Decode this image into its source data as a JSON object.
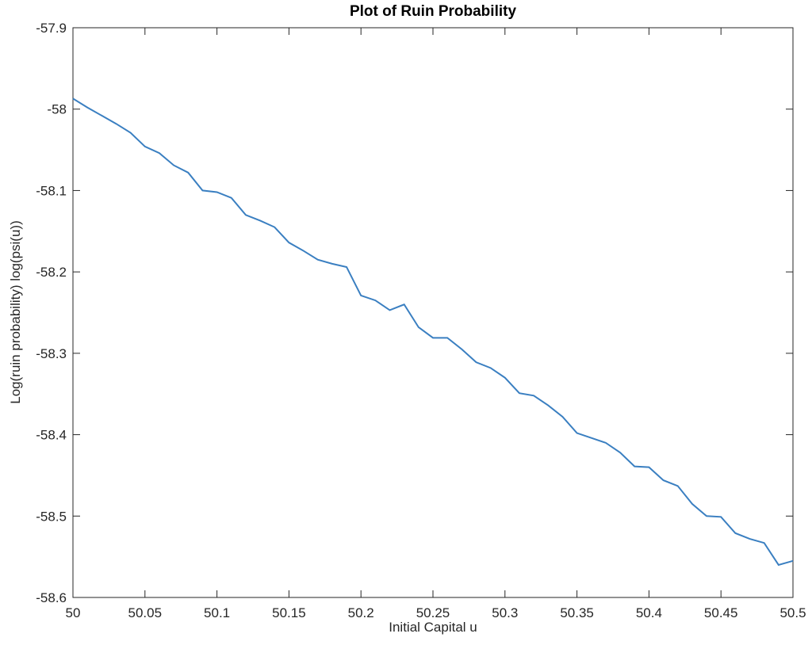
{
  "chart_data": {
    "type": "line",
    "title": "Plot of Ruin Probability",
    "x_label": "Initial Capital u",
    "y_label": "Log(ruin probability) log(psi(u))",
    "x": [
      50,
      50.01,
      50.02,
      50.03,
      50.04,
      50.05,
      50.06,
      50.07,
      50.08,
      50.09,
      50.1,
      50.11,
      50.12,
      50.13,
      50.14,
      50.15,
      50.16,
      50.17,
      50.18,
      50.19,
      50.2,
      50.21,
      50.22,
      50.23,
      50.24,
      50.25,
      50.26,
      50.27,
      50.28,
      50.29,
      50.3,
      50.31,
      50.32,
      50.33,
      50.34,
      50.35,
      50.36,
      50.37,
      50.38,
      50.39,
      50.4,
      50.41,
      50.42,
      50.43,
      50.44,
      50.45,
      50.46,
      50.47,
      50.48,
      50.49,
      50.5
    ],
    "values": [
      -57.987,
      -57.998,
      -58.008,
      -58.018,
      -58.029,
      -58.046,
      -58.054,
      -58.069,
      -58.078,
      -58.1,
      -58.102,
      -58.109,
      -58.13,
      -58.137,
      -58.145,
      -58.164,
      -58.174,
      -58.185,
      -58.19,
      -58.194,
      -58.229,
      -58.235,
      -58.247,
      -58.24,
      -58.268,
      -58.281,
      -58.281,
      -58.295,
      -58.311,
      -58.318,
      -58.33,
      -58.349,
      -58.352,
      -58.364,
      -58.378,
      -58.398,
      -58.404,
      -58.41,
      -58.422,
      -58.439,
      -58.44,
      -58.456,
      -58.463,
      -58.485,
      -58.5,
      -58.501,
      -58.521,
      -58.528,
      -58.533,
      -58.56,
      -58.555
    ],
    "color": "#3a7fc1",
    "xlim": [
      50,
      50.5
    ],
    "xticks": [
      50,
      50.05,
      50.1,
      50.15,
      50.2,
      50.25,
      50.3,
      50.35,
      50.4,
      50.45,
      50.5
    ],
    "ylim": [
      -58.6,
      -57.9
    ],
    "yticks": [
      -58.6,
      -58.5,
      -58.4,
      -58.3,
      -58.2,
      -58.1,
      -58,
      -57.9
    ]
  }
}
